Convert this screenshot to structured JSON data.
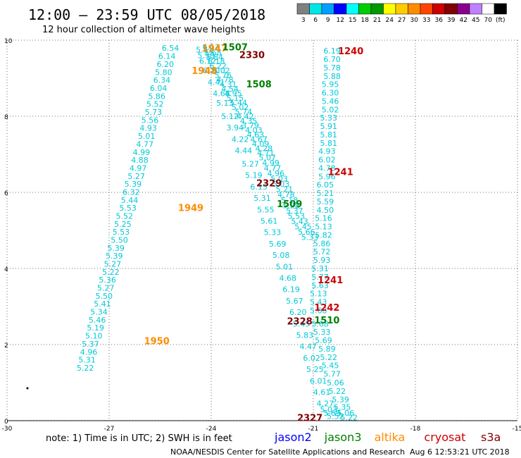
{
  "header": {
    "title": "12:00 – 23:59 UTC 08/05/2018",
    "subtitle": "12 hour collection of altimeter wave heights"
  },
  "colorbar": {
    "colors": [
      "#808080",
      "#00e5e5",
      "#00a0ff",
      "#0000ff",
      "#00ffff",
      "#00cc00",
      "#009900",
      "#ffff00",
      "#ffcc00",
      "#ff8c00",
      "#ff4500",
      "#cc0000",
      "#800000",
      "#8b008b",
      "#c080ff",
      "#ffffff",
      "#000000"
    ],
    "labels": [
      "3",
      "6",
      "9",
      "12",
      "15",
      "18",
      "21",
      "24",
      "27",
      "30",
      "33",
      "36",
      "39",
      "42",
      "45",
      "70",
      "(ft)"
    ]
  },
  "legend": {
    "items": [
      {
        "name": "jason2",
        "color": "#0000ff"
      },
      {
        "name": "jason3",
        "color": "#008000"
      },
      {
        "name": "altika",
        "color": "#ff8c00"
      },
      {
        "name": "cryosat",
        "color": "#cc0000"
      },
      {
        "name": "s3a",
        "color": "#800000"
      }
    ]
  },
  "footer": {
    "note": "note:  1) Time is in UTC;  2) SWH is in feet",
    "credit": "NOAA/NESDIS Center for Satellite Applications and Research",
    "timestamp": "Aug  6 12:53:21 UTC 2018"
  },
  "chart_data": {
    "type": "scatter",
    "title": "12:00 – 23:59 UTC 08/05/2018",
    "subtitle": "12 hour collection of altimeter wave heights",
    "xlim": [
      -30,
      -15
    ],
    "ylim": [
      0,
      10
    ],
    "x_ticks": [
      -30,
      -27,
      -24,
      -21,
      -18,
      -15
    ],
    "y_ticks": [
      0,
      2,
      4,
      6,
      8,
      10
    ],
    "grid": true,
    "value_color": "#00c8d8",
    "tracks": [
      {
        "satellite": "altika",
        "color": "#ff8c00",
        "labels": [
          {
            "text": "1947",
            "x": -23.9,
            "y": 9.8
          },
          {
            "text": "1948",
            "x": -24.2,
            "y": 9.2
          },
          {
            "text": "1949",
            "x": -24.6,
            "y": 5.6
          },
          {
            "text": "1950",
            "x": -25.6,
            "y": 2.1
          }
        ],
        "points": [
          {
            "x": -25.2,
            "y": 9.8,
            "v": "6.54"
          },
          {
            "x": -25.3,
            "y": 9.58,
            "v": "6.14"
          },
          {
            "x": -25.35,
            "y": 9.37,
            "v": "6.20"
          },
          {
            "x": -25.4,
            "y": 9.16,
            "v": "5.80"
          },
          {
            "x": -25.45,
            "y": 8.95,
            "v": "6.34"
          },
          {
            "x": -25.55,
            "y": 8.74,
            "v": "6.04"
          },
          {
            "x": -25.6,
            "y": 8.53,
            "v": "5.86"
          },
          {
            "x": -25.65,
            "y": 8.32,
            "v": "5.52"
          },
          {
            "x": -25.7,
            "y": 8.11,
            "v": "5.73"
          },
          {
            "x": -25.8,
            "y": 7.9,
            "v": "5.56"
          },
          {
            "x": -25.85,
            "y": 7.69,
            "v": "4.93"
          },
          {
            "x": -25.9,
            "y": 7.48,
            "v": "5.01"
          },
          {
            "x": -25.95,
            "y": 7.27,
            "v": "4.77"
          },
          {
            "x": -26.05,
            "y": 7.06,
            "v": "4.99"
          },
          {
            "x": -26.1,
            "y": 6.85,
            "v": "4.88"
          },
          {
            "x": -26.15,
            "y": 6.64,
            "v": "4.97"
          },
          {
            "x": -26.2,
            "y": 6.43,
            "v": "5.27"
          },
          {
            "x": -26.3,
            "y": 6.22,
            "v": "5.39"
          },
          {
            "x": -26.35,
            "y": 6.01,
            "v": "6.32"
          },
          {
            "x": -26.4,
            "y": 5.8,
            "v": "5.44"
          },
          {
            "x": -26.45,
            "y": 5.59,
            "v": "5.53"
          },
          {
            "x": -26.55,
            "y": 5.38,
            "v": "5.52"
          },
          {
            "x": -26.6,
            "y": 5.17,
            "v": "5.25"
          },
          {
            "x": -26.65,
            "y": 4.96,
            "v": "5.53"
          },
          {
            "x": -26.7,
            "y": 4.75,
            "v": "5.50"
          },
          {
            "x": -26.8,
            "y": 4.54,
            "v": "5.39"
          },
          {
            "x": -26.85,
            "y": 4.33,
            "v": "5.39"
          },
          {
            "x": -26.9,
            "y": 4.12,
            "v": "5.27"
          },
          {
            "x": -26.95,
            "y": 3.91,
            "v": "5.22"
          },
          {
            "x": -27.05,
            "y": 3.7,
            "v": "5.36"
          },
          {
            "x": -27.1,
            "y": 3.49,
            "v": "5.27"
          },
          {
            "x": -27.15,
            "y": 3.28,
            "v": "5.50"
          },
          {
            "x": -27.2,
            "y": 3.07,
            "v": "5.41"
          },
          {
            "x": -27.3,
            "y": 2.86,
            "v": "5.34"
          },
          {
            "x": -27.35,
            "y": 2.65,
            "v": "5.46"
          },
          {
            "x": -27.4,
            "y": 2.44,
            "v": "5.19"
          },
          {
            "x": -27.45,
            "y": 2.23,
            "v": "5.10"
          },
          {
            "x": -27.55,
            "y": 2.02,
            "v": "5.37"
          },
          {
            "x": -27.6,
            "y": 1.81,
            "v": "4.96"
          },
          {
            "x": -27.65,
            "y": 1.6,
            "v": "5.31"
          },
          {
            "x": -27.7,
            "y": 1.39,
            "v": "5.22"
          }
        ]
      },
      {
        "satellite": "jason3",
        "color": "#008000",
        "labels": [
          {
            "text": "1507",
            "x": -23.3,
            "y": 9.82
          },
          {
            "text": "1508",
            "x": -22.6,
            "y": 8.85
          },
          {
            "text": "1509",
            "x": -21.7,
            "y": 5.7
          },
          {
            "text": "1510",
            "x": -20.6,
            "y": 2.65
          }
        ],
        "points": [
          {
            "x": -24.0,
            "y": 9.82,
            "v": "6.12"
          },
          {
            "x": -23.95,
            "y": 9.68,
            "v": "5.68"
          },
          {
            "x": -23.9,
            "y": 9.56,
            "v": "5.84"
          },
          {
            "x": -23.85,
            "y": 9.44,
            "v": "6.18"
          },
          {
            "x": -23.8,
            "y": 9.32,
            "v": "6.22"
          },
          {
            "x": -23.7,
            "y": 9.2,
            "v": "6.02"
          },
          {
            "x": -23.65,
            "y": 9.08,
            "v": "5.76"
          },
          {
            "x": -23.6,
            "y": 8.96,
            "v": "4.78"
          },
          {
            "x": -23.5,
            "y": 8.84,
            "v": "4.31"
          },
          {
            "x": -23.45,
            "y": 8.72,
            "v": "4.54"
          },
          {
            "x": -23.35,
            "y": 8.6,
            "v": "4.95"
          },
          {
            "x": -23.3,
            "y": 8.48,
            "v": "5.15"
          },
          {
            "x": -23.2,
            "y": 8.36,
            "v": "5.44"
          },
          {
            "x": -23.15,
            "y": 8.24,
            "v": "5.02"
          },
          {
            "x": -23.05,
            "y": 8.12,
            "v": "5.74"
          },
          {
            "x": -23.0,
            "y": 8.0,
            "v": "4.42"
          },
          {
            "x": -22.9,
            "y": 7.88,
            "v": "4.35"
          },
          {
            "x": -22.85,
            "y": 7.76,
            "v": "3.79"
          },
          {
            "x": -22.75,
            "y": 7.64,
            "v": "4.03"
          },
          {
            "x": -22.7,
            "y": 7.52,
            "v": "4.63"
          },
          {
            "x": -22.6,
            "y": 7.4,
            "v": "4.67"
          },
          {
            "x": -22.55,
            "y": 7.28,
            "v": "4.09"
          },
          {
            "x": -22.45,
            "y": 7.16,
            "v": "4.28"
          },
          {
            "x": -22.4,
            "y": 7.04,
            "v": "4.71"
          },
          {
            "x": -22.35,
            "y": 6.92,
            "v": "5.07"
          },
          {
            "x": -22.25,
            "y": 6.78,
            "v": "4.99"
          },
          {
            "x": -22.2,
            "y": 6.64,
            "v": "4.77"
          },
          {
            "x": -22.1,
            "y": 6.5,
            "v": "4.96"
          },
          {
            "x": -22.0,
            "y": 6.36,
            "v": "5.03"
          },
          {
            "x": -21.95,
            "y": 6.22,
            "v": "5.03"
          },
          {
            "x": -21.85,
            "y": 6.08,
            "v": "5.21"
          },
          {
            "x": -21.8,
            "y": 5.94,
            "v": "4.78"
          },
          {
            "x": -21.7,
            "y": 5.8,
            "v": "5.18"
          },
          {
            "x": -21.65,
            "y": 5.66,
            "v": "5.28"
          },
          {
            "x": -21.55,
            "y": 5.52,
            "v": "5.37"
          },
          {
            "x": -21.5,
            "y": 5.38,
            "v": "5.53"
          },
          {
            "x": -21.4,
            "y": 5.24,
            "v": "5.43"
          },
          {
            "x": -21.3,
            "y": 5.1,
            "v": "5.45"
          },
          {
            "x": -21.2,
            "y": 4.96,
            "v": "5.66"
          },
          {
            "x": -21.1,
            "y": 4.82,
            "v": "5.33"
          }
        ]
      },
      {
        "satellite": "s3a",
        "color": "#800000",
        "labels": [
          {
            "text": "2330",
            "x": -22.8,
            "y": 9.62
          },
          {
            "text": "2329",
            "x": -22.3,
            "y": 6.25
          },
          {
            "text": "2328",
            "x": -21.4,
            "y": 2.62
          },
          {
            "text": "2327",
            "x": -21.1,
            "y": 0.08
          }
        ],
        "points": [
          {
            "x": -24.2,
            "y": 9.75,
            "v": "5.51"
          },
          {
            "x": -24.15,
            "y": 9.6,
            "v": "5.58"
          },
          {
            "x": -24.1,
            "y": 9.45,
            "v": "6.12"
          },
          {
            "x": -24.0,
            "y": 9.2,
            "v": "6.20"
          },
          {
            "x": -23.85,
            "y": 8.9,
            "v": "4.41"
          },
          {
            "x": -23.7,
            "y": 8.6,
            "v": "4.68"
          },
          {
            "x": -23.6,
            "y": 8.35,
            "v": "5.13"
          },
          {
            "x": -23.45,
            "y": 8.0,
            "v": "5.12"
          },
          {
            "x": -23.3,
            "y": 7.7,
            "v": "3.94"
          },
          {
            "x": -23.15,
            "y": 7.4,
            "v": "4.22"
          },
          {
            "x": -23.05,
            "y": 7.1,
            "v": "4.44"
          },
          {
            "x": -22.85,
            "y": 6.75,
            "v": "5.27"
          },
          {
            "x": -22.75,
            "y": 6.45,
            "v": "5.19"
          },
          {
            "x": -22.6,
            "y": 6.15,
            "v": "6.15"
          },
          {
            "x": -22.5,
            "y": 5.85,
            "v": "5.31"
          },
          {
            "x": -22.4,
            "y": 5.55,
            "v": "5.55"
          },
          {
            "x": -22.3,
            "y": 5.25,
            "v": "5.61"
          },
          {
            "x": -22.2,
            "y": 4.95,
            "v": "5.33"
          },
          {
            "x": -22.05,
            "y": 4.65,
            "v": "5.69"
          },
          {
            "x": -21.95,
            "y": 4.35,
            "v": "5.08"
          },
          {
            "x": -21.85,
            "y": 4.05,
            "v": "5.01"
          },
          {
            "x": -21.75,
            "y": 3.75,
            "v": "4.68"
          },
          {
            "x": -21.65,
            "y": 3.45,
            "v": "6.19"
          },
          {
            "x": -21.55,
            "y": 3.15,
            "v": "5.67"
          },
          {
            "x": -21.45,
            "y": 2.85,
            "v": "6.20"
          },
          {
            "x": -21.35,
            "y": 2.55,
            "v": "5.45"
          },
          {
            "x": -21.25,
            "y": 2.25,
            "v": "5.83"
          },
          {
            "x": -21.15,
            "y": 1.95,
            "v": "4.47"
          },
          {
            "x": -21.05,
            "y": 1.65,
            "v": "6.02"
          },
          {
            "x": -20.95,
            "y": 1.35,
            "v": "5.25"
          },
          {
            "x": -20.85,
            "y": 1.05,
            "v": "6.01"
          },
          {
            "x": -20.75,
            "y": 0.75,
            "v": "4.61"
          },
          {
            "x": -20.65,
            "y": 0.45,
            "v": "4.27"
          },
          {
            "x": -20.55,
            "y": 0.3,
            "v": "5.03"
          },
          {
            "x": -20.45,
            "y": 0.2,
            "v": "5.69"
          },
          {
            "x": -20.35,
            "y": 0.12,
            "v": "5.52"
          }
        ]
      },
      {
        "satellite": "cryosat",
        "color": "#cc0000",
        "labels": [
          {
            "text": "1240",
            "x": -19.9,
            "y": 9.72
          },
          {
            "text": "1241",
            "x": -20.2,
            "y": 6.55
          },
          {
            "text": "1241",
            "x": -20.5,
            "y": 3.7
          },
          {
            "text": "1242",
            "x": -20.6,
            "y": 2.98
          }
        ],
        "points": [
          {
            "x": -20.45,
            "y": 9.72,
            "v": "6.19"
          },
          {
            "x": -20.45,
            "y": 9.5,
            "v": "6.70"
          },
          {
            "x": -20.45,
            "y": 9.28,
            "v": "5.78"
          },
          {
            "x": -20.45,
            "y": 9.06,
            "v": "5.88"
          },
          {
            "x": -20.5,
            "y": 8.84,
            "v": "5.95"
          },
          {
            "x": -20.5,
            "y": 8.62,
            "v": "6.30"
          },
          {
            "x": -20.5,
            "y": 8.4,
            "v": "5.46"
          },
          {
            "x": -20.5,
            "y": 8.18,
            "v": "5.02"
          },
          {
            "x": -20.55,
            "y": 7.96,
            "v": "5.33"
          },
          {
            "x": -20.55,
            "y": 7.74,
            "v": "5.91"
          },
          {
            "x": -20.55,
            "y": 7.52,
            "v": "5.81"
          },
          {
            "x": -20.55,
            "y": 7.3,
            "v": "5.81"
          },
          {
            "x": -20.6,
            "y": 7.08,
            "v": "4.93"
          },
          {
            "x": -20.6,
            "y": 6.86,
            "v": "6.02"
          },
          {
            "x": -20.6,
            "y": 6.64,
            "v": "4.78"
          },
          {
            "x": -20.6,
            "y": 6.42,
            "v": "5.96"
          },
          {
            "x": -20.65,
            "y": 6.2,
            "v": "6.05"
          },
          {
            "x": -20.65,
            "y": 5.98,
            "v": "5.21"
          },
          {
            "x": -20.65,
            "y": 5.76,
            "v": "5.59"
          },
          {
            "x": -20.65,
            "y": 5.54,
            "v": "4.50"
          },
          {
            "x": -20.7,
            "y": 5.32,
            "v": "5.16"
          },
          {
            "x": -20.7,
            "y": 5.1,
            "v": "5.13"
          },
          {
            "x": -20.7,
            "y": 4.88,
            "v": "5.82"
          },
          {
            "x": -20.75,
            "y": 4.66,
            "v": "5.86"
          },
          {
            "x": -20.75,
            "y": 4.44,
            "v": "5.72"
          },
          {
            "x": -20.75,
            "y": 4.22,
            "v": "5.93"
          },
          {
            "x": -20.8,
            "y": 4.0,
            "v": "5.31"
          },
          {
            "x": -20.8,
            "y": 3.78,
            "v": "5.77"
          },
          {
            "x": -20.8,
            "y": 3.56,
            "v": "5.63"
          },
          {
            "x": -20.85,
            "y": 3.34,
            "v": "5.13"
          },
          {
            "x": -20.85,
            "y": 3.12,
            "v": "5.43"
          },
          {
            "x": -20.85,
            "y": 2.9,
            "v": "5.68"
          },
          {
            "x": -20.8,
            "y": 2.55,
            "v": "5.68"
          },
          {
            "x": -20.75,
            "y": 2.33,
            "v": "5.33"
          },
          {
            "x": -20.7,
            "y": 2.11,
            "v": "5.69"
          },
          {
            "x": -20.6,
            "y": 1.89,
            "v": "5.89"
          },
          {
            "x": -20.55,
            "y": 1.67,
            "v": "5.22"
          },
          {
            "x": -20.5,
            "y": 1.45,
            "v": "5.45"
          },
          {
            "x": -20.45,
            "y": 1.23,
            "v": "5.77"
          },
          {
            "x": -20.35,
            "y": 1.0,
            "v": "5.06"
          },
          {
            "x": -20.3,
            "y": 0.78,
            "v": "5.22"
          },
          {
            "x": -20.2,
            "y": 0.56,
            "v": "5.39"
          },
          {
            "x": -20.15,
            "y": 0.36,
            "v": "5.35"
          },
          {
            "x": -20.05,
            "y": 0.2,
            "v": "5.06"
          },
          {
            "x": -19.95,
            "y": 0.08,
            "v": "5.22"
          }
        ]
      }
    ]
  }
}
